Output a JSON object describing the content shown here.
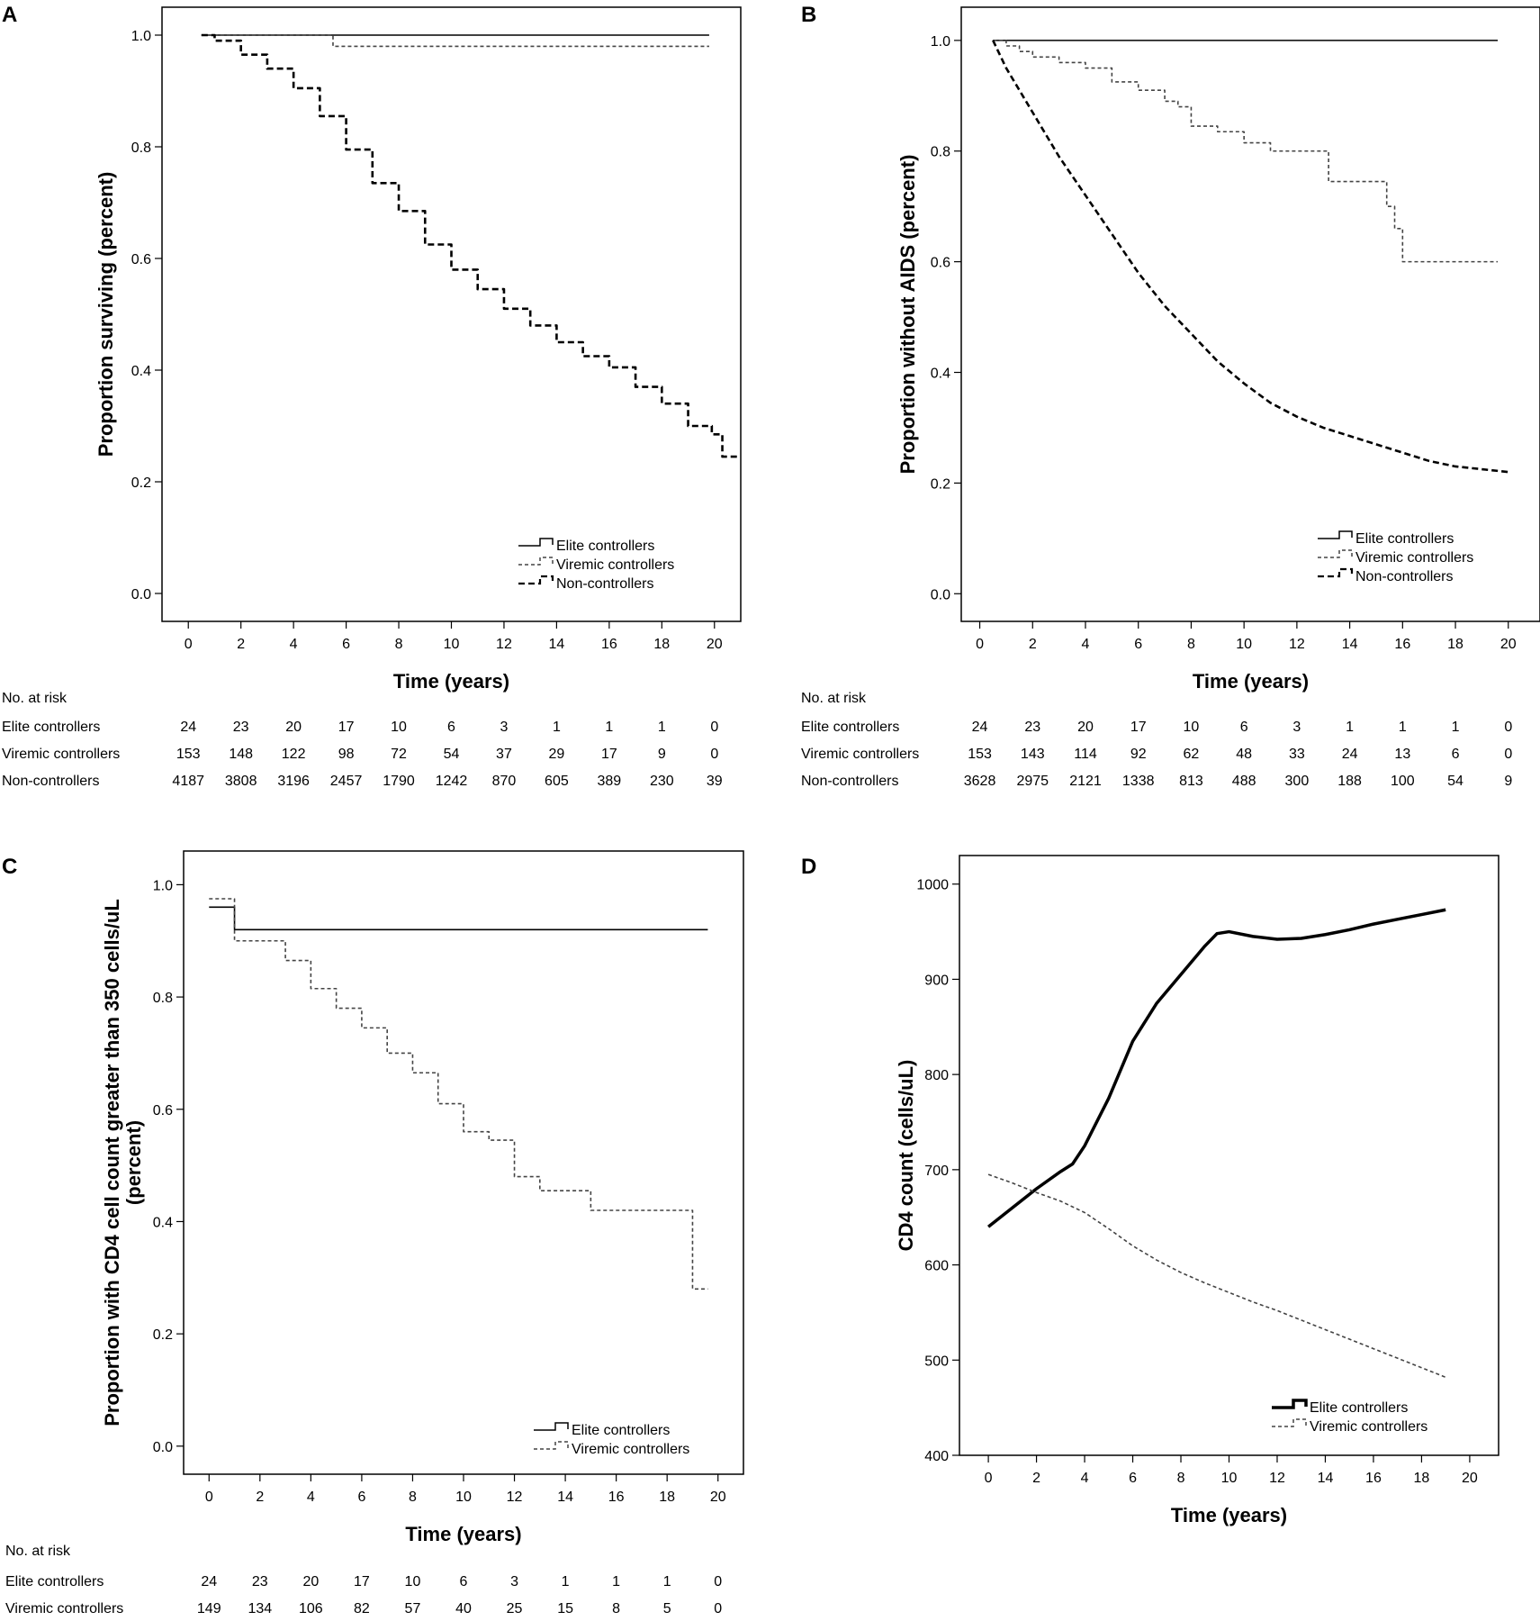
{
  "chart_data": [
    {
      "panel": "A",
      "type": "line",
      "xlabel": "Time (years)",
      "ylabel": "Proportion surviving (percent)",
      "xlim": [
        -1,
        21
      ],
      "ylim": [
        -0.05,
        1.05
      ],
      "xticks": [
        0,
        2,
        4,
        6,
        8,
        10,
        12,
        14,
        16,
        18,
        20
      ],
      "yticks": [
        "0.0",
        "0.2",
        "0.4",
        "0.6",
        "0.8",
        "1.0"
      ],
      "legend": {
        "position": "bottom-right",
        "entries": [
          "Elite controllers",
          "Viremic controllers",
          "Non-controllers"
        ]
      },
      "series": [
        {
          "name": "Elite controllers",
          "style": "solid",
          "step": true,
          "x": [
            0.5,
            19.8
          ],
          "y": [
            1.0,
            1.0
          ]
        },
        {
          "name": "Viremic controllers",
          "style": "dotted",
          "step": true,
          "x": [
            0.5,
            5.5,
            19.8
          ],
          "y": [
            1.0,
            0.98,
            0.98
          ]
        },
        {
          "name": "Non-controllers",
          "style": "dashed",
          "step": true,
          "x": [
            0.5,
            1,
            2,
            3,
            4,
            5,
            6,
            7,
            8,
            9,
            10,
            11,
            12,
            13,
            14,
            15,
            16,
            17,
            18,
            19,
            19.9,
            20.3,
            21
          ],
          "y": [
            1.0,
            0.99,
            0.965,
            0.94,
            0.905,
            0.855,
            0.795,
            0.735,
            0.685,
            0.625,
            0.58,
            0.545,
            0.51,
            0.48,
            0.45,
            0.425,
            0.405,
            0.37,
            0.34,
            0.3,
            0.285,
            0.245,
            0.245
          ]
        }
      ],
      "risk_table": {
        "header": "No. at risk",
        "times": [
          0,
          2,
          4,
          6,
          8,
          10,
          12,
          14,
          16,
          18,
          20
        ],
        "rows": [
          {
            "label": "Elite controllers",
            "values": [
              "24",
              "23",
              "20",
              "17",
              "10",
              "6",
              "3",
              "1",
              "1",
              "1",
              "0"
            ]
          },
          {
            "label": "Viremic controllers",
            "values": [
              "153",
              "148",
              "122",
              "98",
              "72",
              "54",
              "37",
              "29",
              "17",
              "9",
              "0"
            ]
          },
          {
            "label": "Non-controllers",
            "values": [
              "4187",
              "3808",
              "3196",
              "2457",
              "1790",
              "1242",
              "870",
              "605",
              "389",
              "230",
              "39"
            ]
          }
        ]
      }
    },
    {
      "panel": "B",
      "type": "line",
      "xlabel": "Time (years)",
      "ylabel": "Proportion without AIDS (percent)",
      "xlim": [
        -0.7,
        21.2
      ],
      "ylim": [
        -0.05,
        1.06
      ],
      "xticks": [
        0,
        2,
        4,
        6,
        8,
        10,
        12,
        14,
        16,
        18,
        20
      ],
      "yticks": [
        "0.0",
        "0.2",
        "0.4",
        "0.6",
        "0.8",
        "1.0"
      ],
      "legend": {
        "position": "bottom-right",
        "entries": [
          "Elite controllers",
          "Viremic controllers",
          "Non-controllers"
        ]
      },
      "series": [
        {
          "name": "Elite controllers",
          "style": "solid",
          "step": true,
          "x": [
            0.5,
            19.6
          ],
          "y": [
            1.0,
            1.0
          ]
        },
        {
          "name": "Viremic controllers",
          "style": "dotted",
          "step": true,
          "x": [
            0.5,
            1,
            1.5,
            2,
            3,
            4,
            5,
            6,
            7,
            7.5,
            8,
            9,
            10,
            11,
            12,
            13,
            13.2,
            14,
            15,
            15.4,
            15.7,
            16,
            19.6
          ],
          "y": [
            1.0,
            0.99,
            0.98,
            0.97,
            0.96,
            0.95,
            0.925,
            0.91,
            0.89,
            0.88,
            0.845,
            0.835,
            0.815,
            0.8,
            0.8,
            0.8,
            0.745,
            0.745,
            0.745,
            0.7,
            0.66,
            0.6,
            0.6
          ]
        },
        {
          "name": "Non-controllers",
          "style": "dashed",
          "step": false,
          "x": [
            0.5,
            1,
            2,
            3,
            4,
            5,
            6,
            7,
            8,
            9,
            10,
            11,
            12,
            13,
            14,
            15,
            16,
            17,
            18,
            19,
            20
          ],
          "y": [
            1.0,
            0.95,
            0.87,
            0.79,
            0.72,
            0.65,
            0.58,
            0.52,
            0.47,
            0.42,
            0.38,
            0.345,
            0.32,
            0.3,
            0.285,
            0.27,
            0.255,
            0.24,
            0.23,
            0.225,
            0.22
          ]
        }
      ],
      "risk_table": {
        "header": "No. at risk",
        "times": [
          0,
          2,
          4,
          6,
          8,
          10,
          12,
          14,
          16,
          18,
          20
        ],
        "rows": [
          {
            "label": "Elite controllers",
            "values": [
              "24",
              "23",
              "20",
              "17",
              "10",
              "6",
              "3",
              "1",
              "1",
              "1",
              "0"
            ]
          },
          {
            "label": "Viremic controllers",
            "values": [
              "153",
              "143",
              "114",
              "92",
              "62",
              "48",
              "33",
              "24",
              "13",
              "6",
              "0"
            ]
          },
          {
            "label": "Non-controllers",
            "values": [
              "3628",
              "2975",
              "2121",
              "1338",
              "813",
              "488",
              "300",
              "188",
              "100",
              "54",
              "9"
            ]
          }
        ]
      }
    },
    {
      "panel": "C",
      "type": "line",
      "xlabel": "Time (years)",
      "ylabel": "Proportion with CD4 cell count greater than 350 cells/uL (percent)",
      "ylabel_lines": [
        "Proportion with CD4 cell count greater than 350 cells/uL",
        "(percent)"
      ],
      "xlim": [
        -1,
        21
      ],
      "ylim": [
        -0.05,
        1.06
      ],
      "xticks": [
        0,
        2,
        4,
        6,
        8,
        10,
        12,
        14,
        16,
        18,
        20
      ],
      "yticks": [
        "0.0",
        "0.2",
        "0.4",
        "0.6",
        "0.8",
        "1.0"
      ],
      "legend": {
        "position": "bottom-right",
        "entries": [
          "Elite controllers",
          "Viremic controllers"
        ]
      },
      "series": [
        {
          "name": "Elite controllers",
          "style": "solid",
          "step": true,
          "x": [
            0,
            1,
            19.6
          ],
          "y": [
            0.96,
            0.92,
            0.92
          ]
        },
        {
          "name": "Viremic controllers",
          "style": "dotted",
          "step": true,
          "x": [
            0,
            1,
            3,
            4,
            5,
            6,
            7,
            8,
            9,
            10,
            11,
            12,
            13,
            15,
            19,
            19.6
          ],
          "y": [
            0.975,
            0.9,
            0.865,
            0.815,
            0.78,
            0.745,
            0.7,
            0.665,
            0.61,
            0.56,
            0.545,
            0.48,
            0.455,
            0.42,
            0.28,
            0.28
          ]
        }
      ],
      "risk_table": {
        "header": "No. at risk",
        "times": [
          0,
          2,
          4,
          6,
          8,
          10,
          12,
          14,
          16,
          18,
          20
        ],
        "rows": [
          {
            "label": "Elite controllers",
            "values": [
              "24",
              "23",
              "20",
              "17",
              "10",
              "6",
              "3",
              "1",
              "1",
              "1",
              "0"
            ]
          },
          {
            "label": "Viremic controllers",
            "values": [
              "149",
              "134",
              "106",
              "82",
              "57",
              "40",
              "25",
              "15",
              "8",
              "5",
              "0"
            ]
          }
        ]
      }
    },
    {
      "panel": "D",
      "type": "line",
      "xlabel": "Time (years)",
      "ylabel": "CD4 count (cells/uL)",
      "xlim": [
        -1.2,
        21.2
      ],
      "ylim": [
        400,
        1030
      ],
      "xticks": [
        0,
        2,
        4,
        6,
        8,
        10,
        12,
        14,
        16,
        18,
        20
      ],
      "yticks": [
        "400",
        "500",
        "600",
        "700",
        "800",
        "900",
        "1000"
      ],
      "legend": {
        "position": "bottom-right",
        "entries": [
          "Elite controllers",
          "Viremic controllers"
        ]
      },
      "series": [
        {
          "name": "Elite controllers",
          "style": "solid-thick",
          "step": false,
          "x": [
            0,
            1,
            2,
            3,
            3.5,
            4,
            5,
            6,
            7,
            8,
            9,
            9.5,
            10,
            11,
            12,
            13,
            14,
            15,
            16,
            17,
            18,
            19
          ],
          "y": [
            640,
            660,
            680,
            698,
            706,
            725,
            775,
            835,
            875,
            905,
            935,
            948,
            950,
            945,
            942,
            943,
            947,
            952,
            958,
            963,
            968,
            973
          ]
        },
        {
          "name": "Viremic controllers",
          "style": "dotted",
          "step": false,
          "x": [
            0,
            1,
            2,
            3,
            4,
            5,
            6,
            7,
            8,
            9,
            10,
            11,
            12,
            13,
            14,
            15,
            16,
            17,
            18,
            19
          ],
          "y": [
            695,
            686,
            676,
            667,
            655,
            638,
            620,
            605,
            592,
            581,
            571,
            561,
            552,
            542,
            532,
            522,
            512,
            502,
            492,
            482
          ]
        }
      ]
    }
  ]
}
